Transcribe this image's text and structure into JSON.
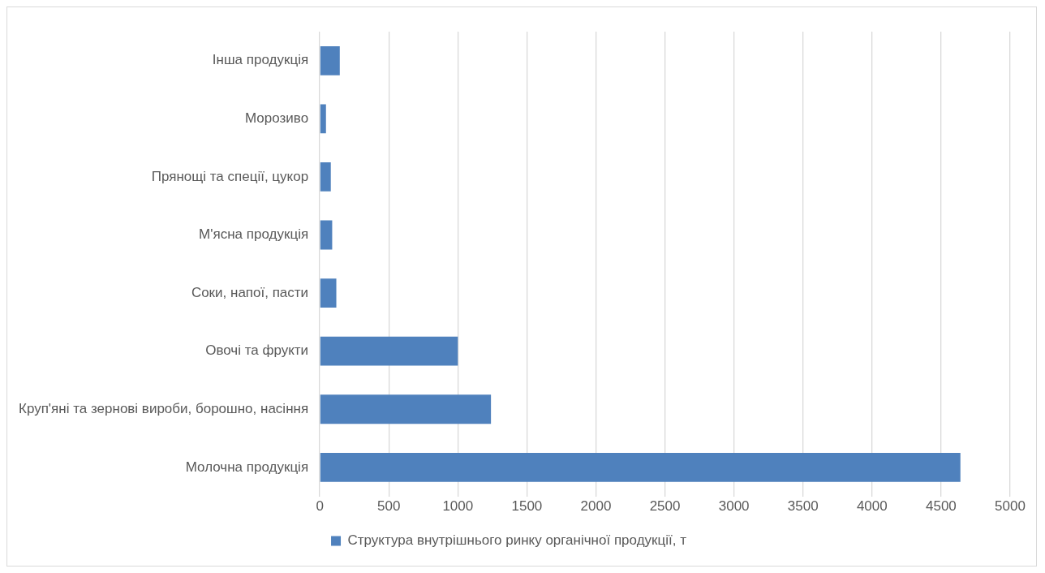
{
  "chart_data": {
    "type": "bar",
    "orientation": "horizontal",
    "categories": [
      "Інша продукція",
      "Морозиво",
      "Прянощі та спеції, цукор",
      "М'ясна продукція",
      "Соки, напої, пасти",
      "Овочі та фрукти",
      "Круп'яні та зернові вироби, борошно, насіння",
      "Молочна продукція"
    ],
    "series": [
      {
        "name": "Структура внутрішнього ринку органічної продукції, т",
        "color": "#4f81bd",
        "values": [
          145,
          45,
          80,
          90,
          120,
          1000,
          1240,
          4640
        ]
      }
    ],
    "xlim": [
      0,
      5000
    ],
    "xticks": [
      0,
      500,
      1000,
      1500,
      2000,
      2500,
      3000,
      3500,
      4000,
      4500,
      5000
    ],
    "grid": "x",
    "legend": "bottom"
  }
}
